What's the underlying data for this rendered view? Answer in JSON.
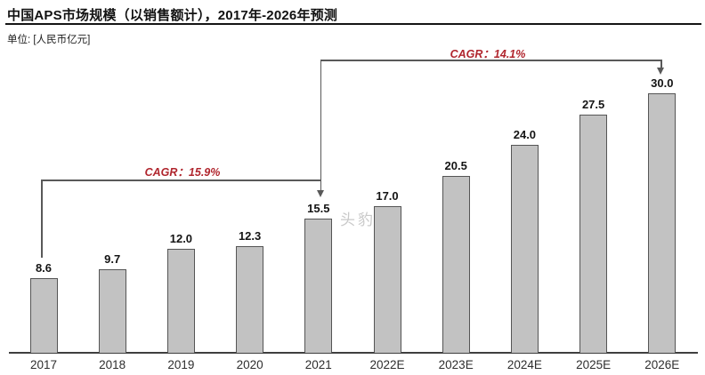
{
  "page": {
    "title": "中国APS市场规模（以销售额计），2017年-2026年预测",
    "unit_label": "单位: [人民币亿元]"
  },
  "watermark": "头豹",
  "colors": {
    "bar_fill": "#c2c2c2",
    "bar_border": "#555555",
    "line_gray": "#595959",
    "accent_red": "#b0262e",
    "axis": "#3f3f3f"
  },
  "chart_data": {
    "type": "bar",
    "title": "中国APS市场规模（以销售额计），2017年-2026年预测",
    "unit": "人民币亿元",
    "categories": [
      "2017",
      "2018",
      "2019",
      "2020",
      "2021",
      "2022E",
      "2023E",
      "2024E",
      "2025E",
      "2026E"
    ],
    "values": [
      8.6,
      9.7,
      12.0,
      12.3,
      15.5,
      17.0,
      20.5,
      24.0,
      27.5,
      30.0
    ],
    "ylim": [
      0,
      30
    ],
    "grid": false,
    "legend": "none",
    "annotations": [
      {
        "label": "CAGR：15.9%",
        "from": "2017",
        "to": "2021"
      },
      {
        "label": "CAGR：14.1%",
        "from": "2021",
        "to": "2026E"
      }
    ]
  }
}
